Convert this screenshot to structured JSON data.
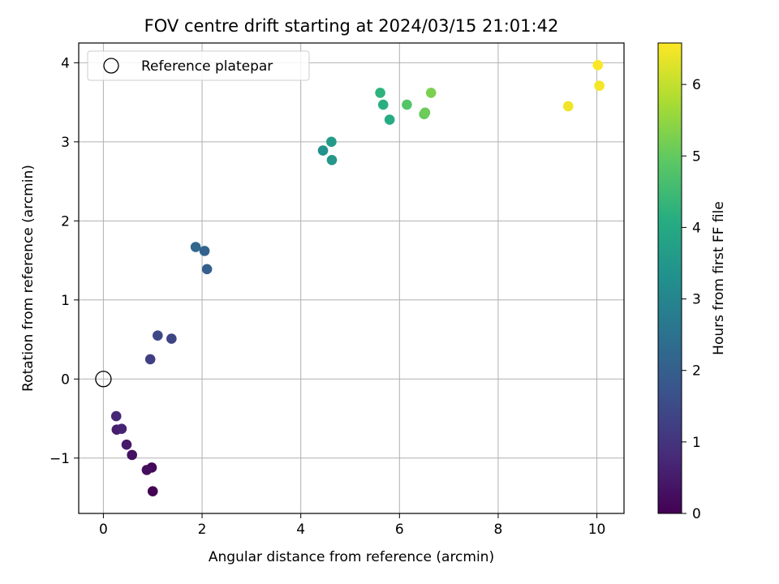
{
  "chart_data": {
    "type": "scatter",
    "title": "FOV centre drift starting at 2024/03/15 21:01:42",
    "xlabel": "Angular distance from reference (arcmin)",
    "ylabel": "Rotation from reference (arcmin)",
    "xlim": [
      -0.5,
      10.55
    ],
    "ylim": [
      -1.7,
      4.25
    ],
    "xticks": [
      0,
      2,
      4,
      6,
      8,
      10
    ],
    "xtick_labels": [
      "0",
      "2",
      "4",
      "6",
      "8",
      "10"
    ],
    "yticks": [
      -1,
      0,
      1,
      2,
      3,
      4
    ],
    "ytick_labels": [
      "−1",
      "0",
      "1",
      "2",
      "3",
      "4"
    ],
    "grid": true,
    "legend": {
      "placement": "upper-left",
      "entries": [
        {
          "label": "Reference platepar",
          "marker": "open-circle"
        }
      ]
    },
    "reference_point": {
      "x": 0,
      "y": 0
    },
    "colormap": "viridis",
    "colorbar": {
      "label": "Hours from first FF file",
      "range": [
        0,
        6.58
      ],
      "ticks": [
        0,
        1,
        2,
        3,
        4,
        5,
        6
      ],
      "tick_labels": [
        "0",
        "1",
        "2",
        "3",
        "4",
        "5",
        "6"
      ]
    },
    "points": [
      {
        "x": 1.0,
        "y": -1.42,
        "hours": 0.0
      },
      {
        "x": 0.98,
        "y": -1.12,
        "hours": 0.12
      },
      {
        "x": 0.88,
        "y": -1.15,
        "hours": 0.22
      },
      {
        "x": 0.58,
        "y": -0.96,
        "hours": 0.33
      },
      {
        "x": 0.47,
        "y": -0.83,
        "hours": 0.45
      },
      {
        "x": 0.27,
        "y": -0.64,
        "hours": 0.55
      },
      {
        "x": 0.37,
        "y": -0.63,
        "hours": 0.65
      },
      {
        "x": 0.26,
        "y": -0.47,
        "hours": 0.75
      },
      {
        "x": 0.95,
        "y": 0.25,
        "hours": 1.25
      },
      {
        "x": 1.38,
        "y": 0.51,
        "hours": 1.35
      },
      {
        "x": 1.1,
        "y": 0.55,
        "hours": 1.45
      },
      {
        "x": 2.1,
        "y": 1.39,
        "hours": 2.0
      },
      {
        "x": 2.05,
        "y": 1.62,
        "hours": 2.1
      },
      {
        "x": 1.87,
        "y": 1.67,
        "hours": 2.2
      },
      {
        "x": 4.45,
        "y": 2.89,
        "hours": 3.35
      },
      {
        "x": 4.63,
        "y": 2.77,
        "hours": 3.5
      },
      {
        "x": 4.62,
        "y": 3.0,
        "hours": 3.6
      },
      {
        "x": 5.8,
        "y": 3.28,
        "hours": 4.05
      },
      {
        "x": 5.67,
        "y": 3.47,
        "hours": 4.15
      },
      {
        "x": 5.61,
        "y": 3.62,
        "hours": 4.25
      },
      {
        "x": 6.15,
        "y": 3.47,
        "hours": 4.8
      },
      {
        "x": 6.5,
        "y": 3.35,
        "hours": 5.0
      },
      {
        "x": 6.52,
        "y": 3.37,
        "hours": 5.1
      },
      {
        "x": 6.64,
        "y": 3.62,
        "hours": 5.25
      },
      {
        "x": 9.42,
        "y": 3.45,
        "hours": 6.45
      },
      {
        "x": 10.05,
        "y": 3.71,
        "hours": 6.5
      },
      {
        "x": 10.02,
        "y": 3.97,
        "hours": 6.55
      }
    ]
  }
}
